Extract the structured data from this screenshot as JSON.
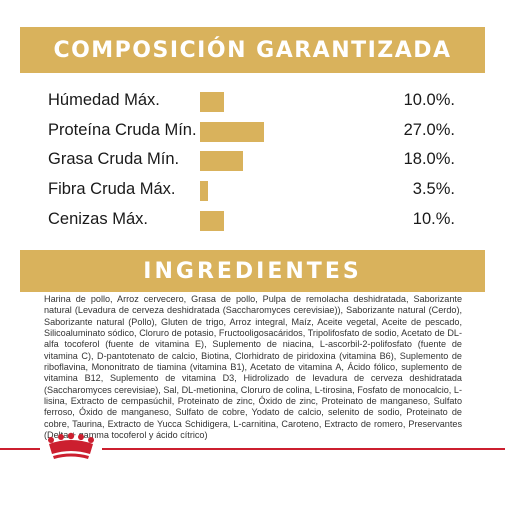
{
  "composition": {
    "title": "COMPOSICIÓN GARANTIZADA",
    "rows": [
      {
        "label": "Húmedad Máx.",
        "value": "10.0%.",
        "fraction": 0.37
      },
      {
        "label": "Proteína Cruda Mín.",
        "value": "27.0%.",
        "fraction": 1.0
      },
      {
        "label": "Grasa Cruda Mín.",
        "value": "18.0%.",
        "fraction": 0.67
      },
      {
        "label": "Fibra Cruda Máx.",
        "value": "3.5%.",
        "fraction": 0.13
      },
      {
        "label": "Cenizas Máx.",
        "value": "10.%.",
        "fraction": 0.37
      }
    ]
  },
  "ingredients": {
    "title": "INGREDIENTES",
    "text": "Harina de pollo, Arroz cervecero, Grasa de pollo, Pulpa de remolacha deshidratada, Saborizante natural (Levadura de cerveza deshidratada (Saccharomyces cerevisiae)), Saborizante natural (Cerdo), Saborizante natural (Pollo), Gluten de trigo, Arroz integral, Maíz, Aceite vegetal, Aceite de pescado, Silicoaluminato sódico, Cloruro de potasio, Fructooligosacáridos, Tripolifosfato de sodio, Acetato de DL-alfa tocoferol (fuente de vitamina E), Suplemento de niacina, L-ascorbil-2-polifosfato (fuente de vitamina C), D-pantotenato de calcio, Biotina, Clorhidrato de piridoxina (vitamina B6), Suplemento de riboflavina, Mononitrato de tiamina (vitamina B1), Acetato de vitamina A, Ácido fólico, suplemento de vitamina B12, Suplemento de vitamina D3, Hidrolizado de levadura de cerveza deshidratada (Saccharomyces cerevisiae), Sal, DL-metionina, Cloruro de colina, L-tirosina, Fosfato de monocalcio, L-lisina, Extracto de cempasúchil, Proteinato de zinc, Óxido de zinc, Proteinato de manganeso, Sulfato ferroso, Óxido de manganeso, Sulfato de cobre, Yodato de calcio, selenito de sodio, Proteinato de cobre, Taurina, Extracto de Yucca Schidigera, L-carnitina, Caroteno, Extracto de romero, Preservantes (Delta + gamma tocoferol y ácido cítrico)"
  },
  "colors": {
    "accent": "#d9b25c",
    "brand_red": "#cc1f2f"
  },
  "logo": {
    "name": "royal-canin-crown-logo"
  }
}
